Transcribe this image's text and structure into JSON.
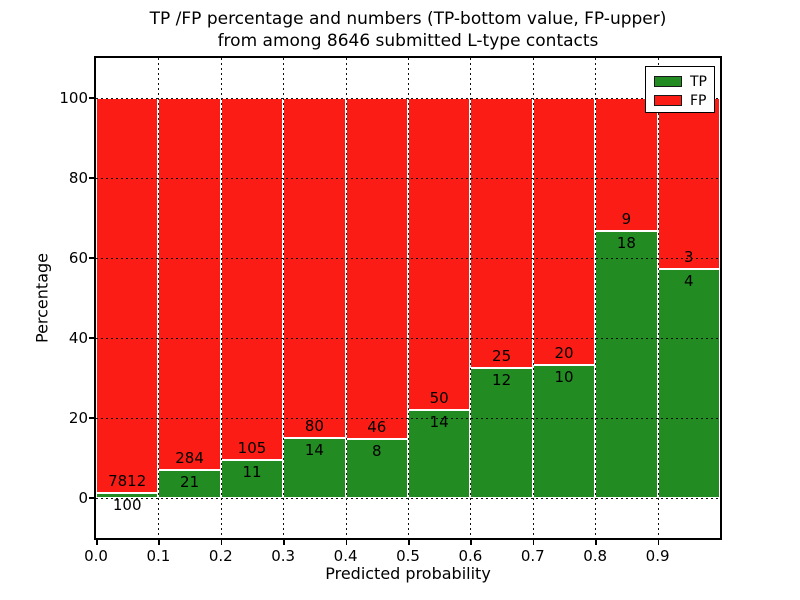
{
  "title": {
    "line1": "TP /FP percentage and numbers (TP-bottom value, FP-upper)",
    "line2": "from among 8646 submitted L-type contacts"
  },
  "chart_data": {
    "type": "bar",
    "stacked": true,
    "title": "TP /FP percentage and numbers (TP-bottom value, FP-upper) from among 8646 submitted L-type contacts",
    "xlabel": "Predicted probability",
    "ylabel": "Percentage",
    "total_contacts": 8646,
    "bin_edges": [
      0.0,
      0.1,
      0.2,
      0.3,
      0.4,
      0.5,
      0.6,
      0.7,
      0.8,
      0.9,
      1.0
    ],
    "xtick_labels": [
      "0.0",
      "0.1",
      "0.2",
      "0.3",
      "0.4",
      "0.5",
      "0.6",
      "0.7",
      "0.8",
      "0.9"
    ],
    "ytick_values": [
      0,
      20,
      40,
      60,
      80,
      100
    ],
    "xlim": [
      0.0,
      1.0
    ],
    "ylim": [
      -10,
      110
    ],
    "grid_style": "dotted",
    "bar_edge_color": "#ffffff",
    "series": [
      {
        "name": "TP",
        "color": "#228b22",
        "counts": [
          100,
          21,
          11,
          14,
          8,
          14,
          12,
          10,
          18,
          4
        ],
        "percent": [
          1.26,
          6.89,
          9.48,
          14.89,
          14.81,
          21.88,
          32.43,
          33.33,
          66.67,
          57.14
        ]
      },
      {
        "name": "FP",
        "color": "#fb1d15",
        "counts": [
          7812,
          284,
          105,
          80,
          46,
          50,
          25,
          20,
          9,
          3
        ],
        "percent": [
          98.74,
          93.11,
          90.52,
          85.11,
          85.19,
          78.13,
          67.57,
          66.67,
          33.33,
          42.86
        ]
      }
    ],
    "legend": {
      "position": "upper-right",
      "entries": [
        "TP",
        "FP"
      ]
    }
  }
}
